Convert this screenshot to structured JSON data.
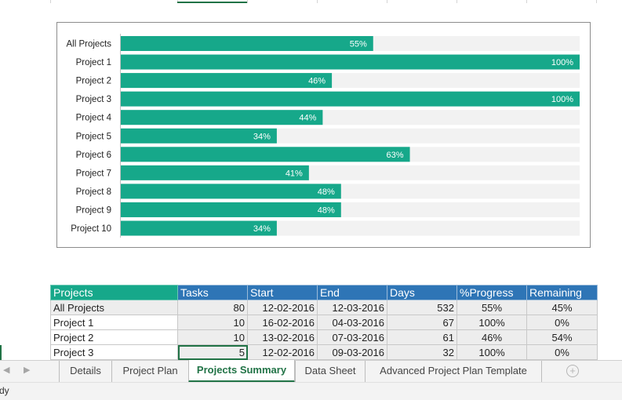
{
  "chart_data": {
    "type": "bar",
    "orientation": "horizontal",
    "categories": [
      "All Projects",
      "Project 1",
      "Project 2",
      "Project 3",
      "Project 4",
      "Project 5",
      "Project 6",
      "Project 7",
      "Project 8",
      "Project 9",
      "Project 10"
    ],
    "values": [
      55,
      100,
      46,
      100,
      44,
      34,
      63,
      41,
      48,
      48,
      34
    ],
    "value_labels": [
      "55%",
      "100%",
      "46%",
      "100%",
      "44%",
      "34%",
      "63%",
      "41%",
      "48%",
      "48%",
      "34%"
    ],
    "xlim": [
      0,
      100
    ],
    "bar_color": "#16a88a",
    "track_color": "#f2f2f2",
    "grid": false,
    "title": "",
    "xlabel": "",
    "ylabel": ""
  },
  "table": {
    "headers": [
      "Projects",
      "Tasks",
      "Start",
      "End",
      "Days",
      "%Progress",
      "Remaining"
    ],
    "rows": [
      [
        "All Projects",
        "80",
        "12-02-2016",
        "12-03-2016",
        "532",
        "55%",
        "45%"
      ],
      [
        "Project 1",
        "10",
        "16-02-2016",
        "04-03-2016",
        "67",
        "100%",
        "0%"
      ],
      [
        "Project 2",
        "10",
        "13-02-2016",
        "07-03-2016",
        "61",
        "46%",
        "54%"
      ],
      [
        "Project 3",
        "5",
        "12-02-2016",
        "09-03-2016",
        "32",
        "100%",
        "0%"
      ]
    ]
  },
  "sheet_tabs": [
    "Details",
    "Project Plan",
    "Projects Summary",
    "Data Sheet",
    "Advanced Project Plan Template"
  ],
  "active_tab": "Projects Summary",
  "nav_arrows": {
    "prev": "◀",
    "next": "▶"
  },
  "add_sheet_symbol": "+",
  "status_text": "dy",
  "colors": {
    "accent": "#217346",
    "teal": "#16a88a",
    "header_blue": "#2e75b6"
  }
}
